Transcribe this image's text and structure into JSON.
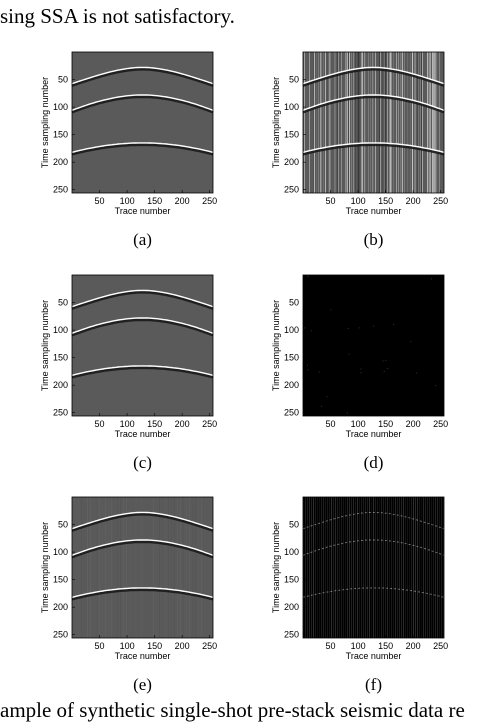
{
  "text": {
    "top_line": "sing SSA is not satisfactory.",
    "bottom_line": "ample of synthetic single-shot pre-stack seismic data re"
  },
  "panels": [
    {
      "caption": "(a)",
      "style": "clean"
    },
    {
      "caption": "(b)",
      "style": "noisy"
    },
    {
      "caption": "(c)",
      "style": "clean"
    },
    {
      "caption": "(d)",
      "style": "dark"
    },
    {
      "caption": "(e)",
      "style": "clean2"
    },
    {
      "caption": "(f)",
      "style": "residual"
    }
  ],
  "axes": {
    "ylabel": "Time sampling number",
    "xlabel": "Trace number",
    "xticks": [
      "50",
      "100",
      "150",
      "200",
      "250"
    ],
    "yticks": [
      "50",
      "100",
      "150",
      "200",
      "250"
    ]
  },
  "colors": {
    "gray_bg": "#5a5a5a",
    "black_bg": "#000000",
    "event": "#ffffff"
  }
}
